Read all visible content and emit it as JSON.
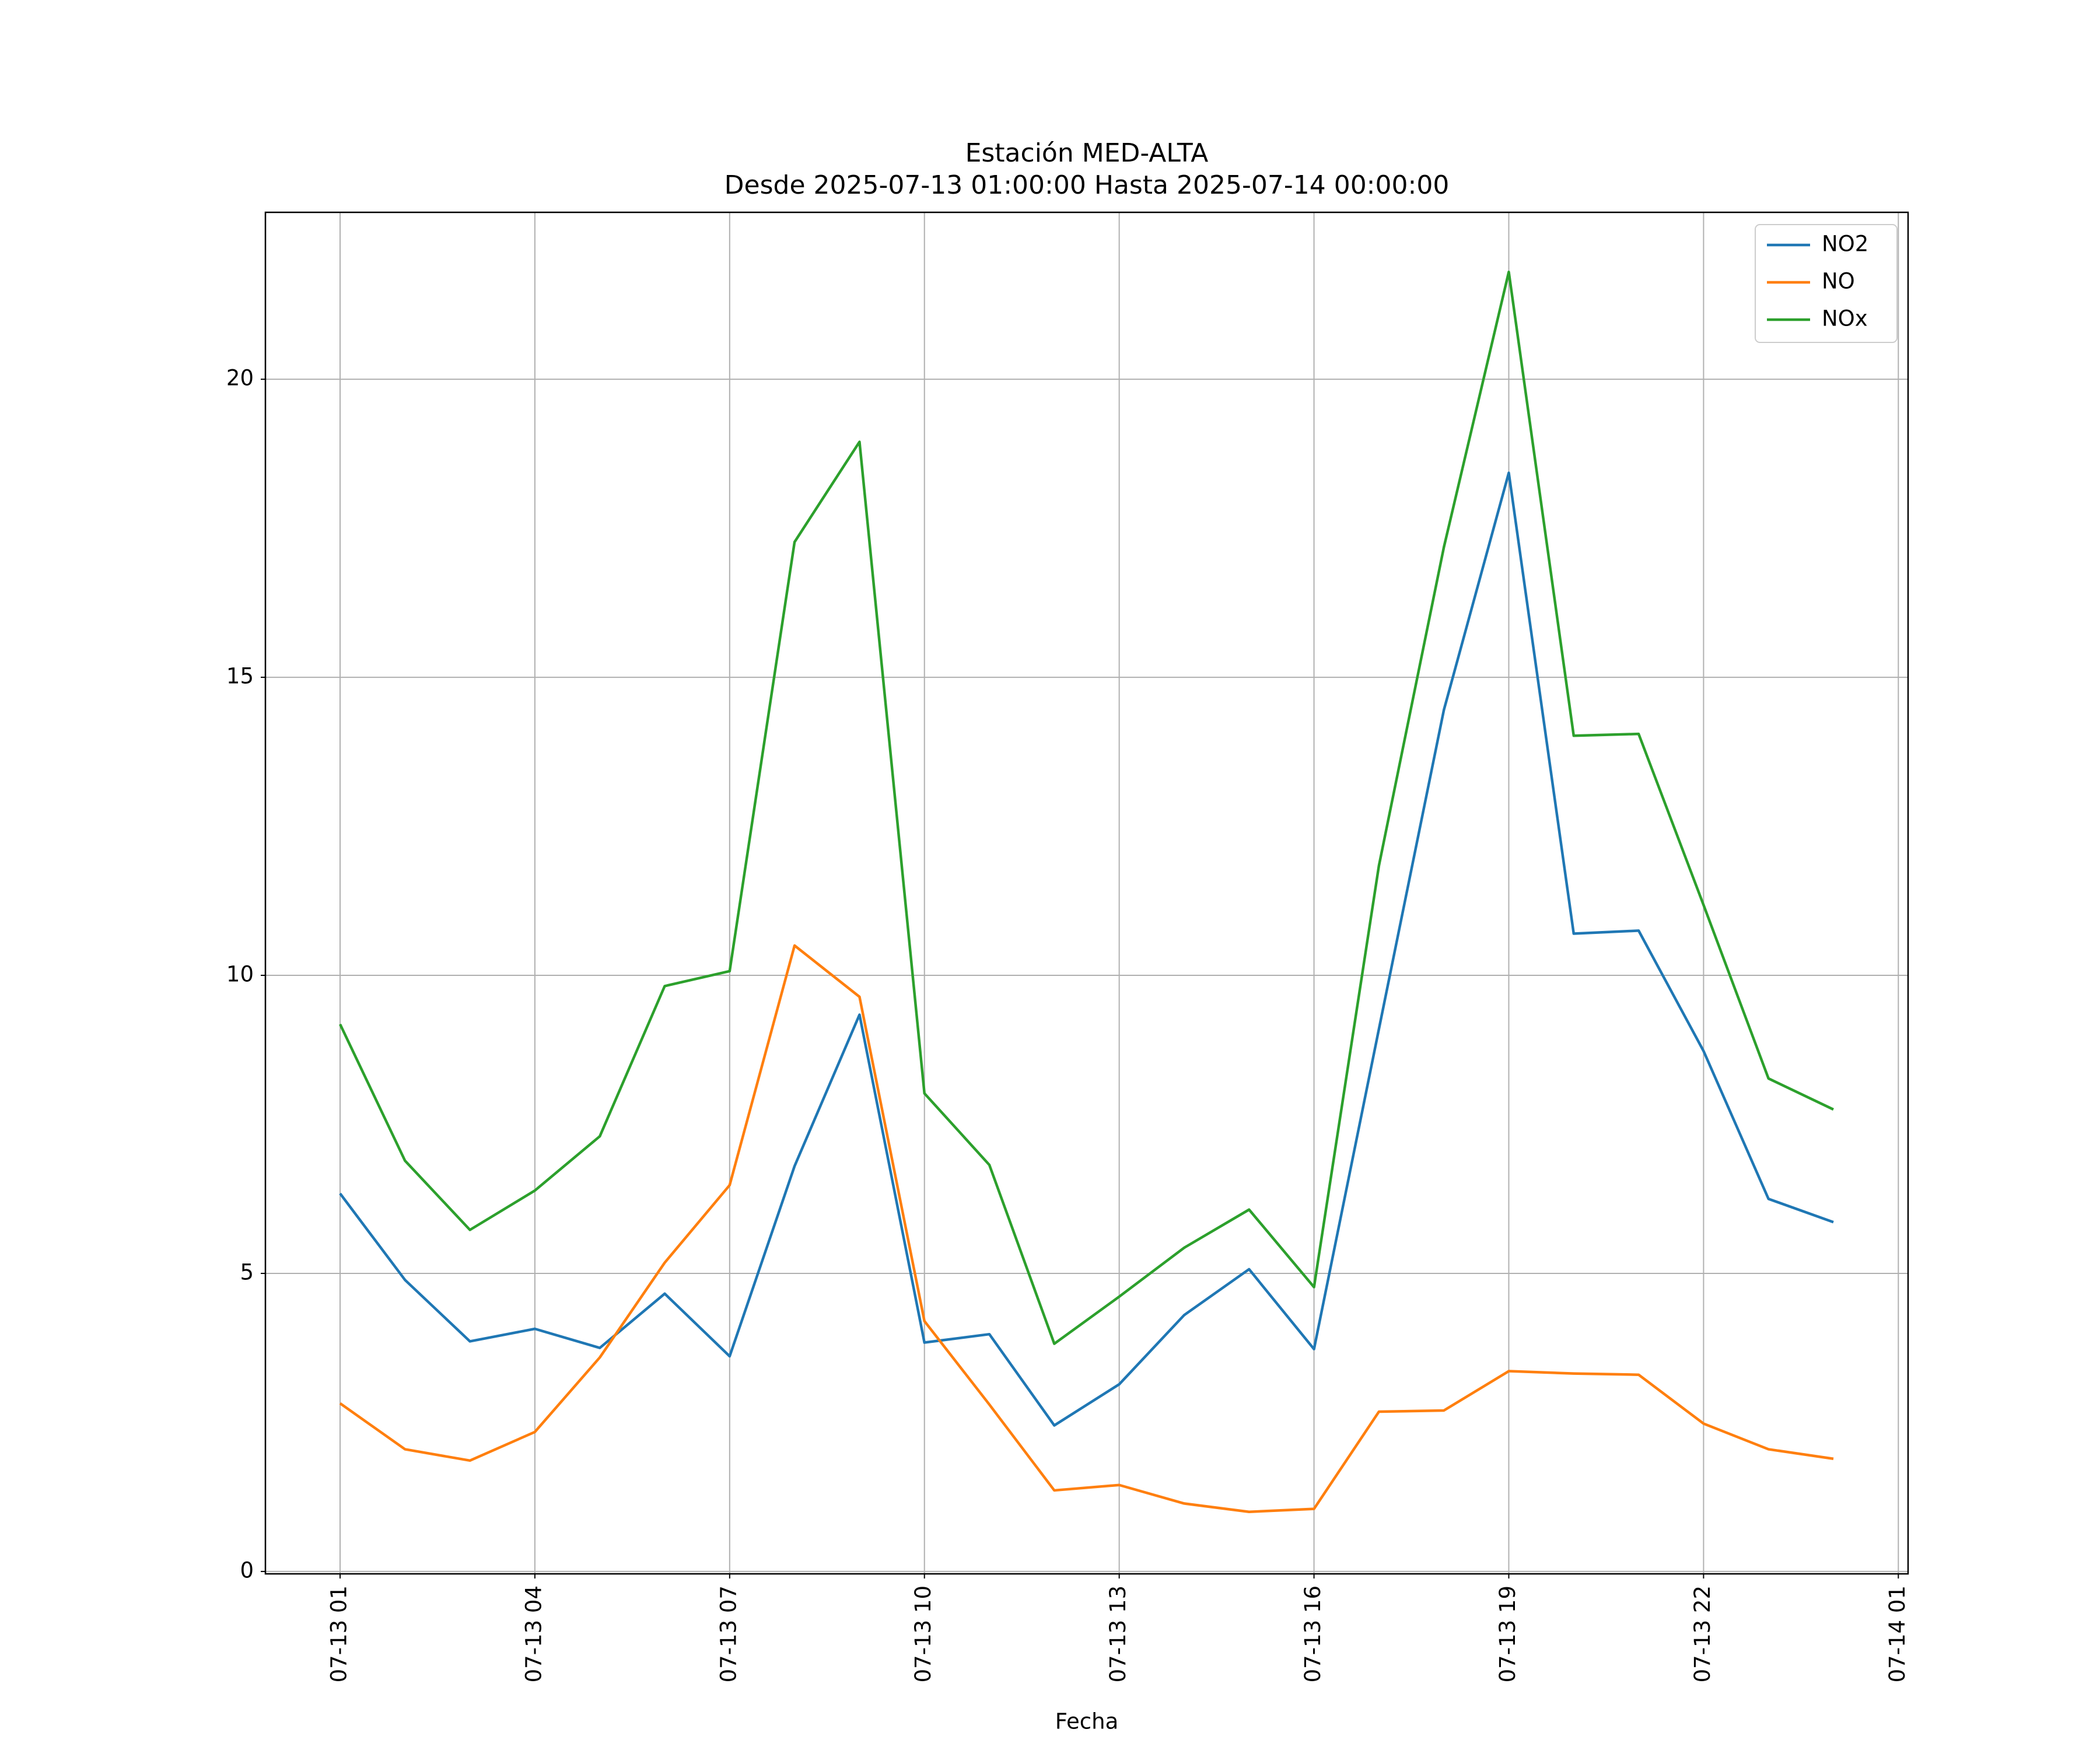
{
  "chart_data": {
    "type": "line",
    "title": "Estación MED-ALTA",
    "subtitle": "Desde 2025-07-13 01:00:00 Hasta 2025-07-14 00:00:00",
    "xlabel": "Fecha",
    "x": [
      "07-13 01",
      "07-13 02",
      "07-13 03",
      "07-13 04",
      "07-13 05",
      "07-13 06",
      "07-13 07",
      "07-13 08",
      "07-13 09",
      "07-13 10",
      "07-13 11",
      "07-13 12",
      "07-13 13",
      "07-13 14",
      "07-13 15",
      "07-13 16",
      "07-13 17",
      "07-13 18",
      "07-13 19",
      "07-13 20",
      "07-13 21",
      "07-13 22",
      "07-13 23",
      "07-14 00"
    ],
    "series": [
      {
        "name": "NO2",
        "color": "#1f77b4",
        "values": [
          6.34,
          4.89,
          3.86,
          4.07,
          3.75,
          4.66,
          3.61,
          6.8,
          9.34,
          3.84,
          3.98,
          2.45,
          3.14,
          4.3,
          5.07,
          3.73,
          9.1,
          14.45,
          18.43,
          10.7,
          10.75,
          8.73,
          6.25,
          5.86
        ]
      },
      {
        "name": "NO",
        "color": "#ff7f0e",
        "values": [
          2.82,
          2.05,
          1.86,
          2.34,
          3.59,
          5.18,
          6.48,
          10.5,
          9.64,
          4.2,
          2.8,
          1.36,
          1.45,
          1.14,
          1.0,
          1.05,
          2.68,
          2.7,
          3.36,
          3.32,
          3.3,
          2.48,
          2.05,
          1.89
        ]
      },
      {
        "name": "NOx",
        "color": "#2ca02c",
        "values": [
          9.18,
          6.89,
          5.73,
          6.39,
          7.3,
          9.82,
          10.07,
          17.27,
          18.95,
          8.02,
          6.82,
          3.82,
          4.61,
          5.43,
          6.07,
          4.77,
          11.84,
          17.18,
          21.8,
          14.02,
          14.05,
          11.18,
          8.27,
          7.75
        ]
      }
    ],
    "xlim": [
      "07-12 23:51",
      "07-14 01:09"
    ],
    "xticks": [
      "07-13 01",
      "07-13 04",
      "07-13 07",
      "07-13 10",
      "07-13 13",
      "07-13 16",
      "07-13 19",
      "07-13 22",
      "07-14 01"
    ],
    "ylim": [
      -0.04,
      22.8
    ],
    "yticks": [
      0,
      5,
      10,
      15,
      20
    ],
    "grid": true,
    "legend": "upper right"
  }
}
